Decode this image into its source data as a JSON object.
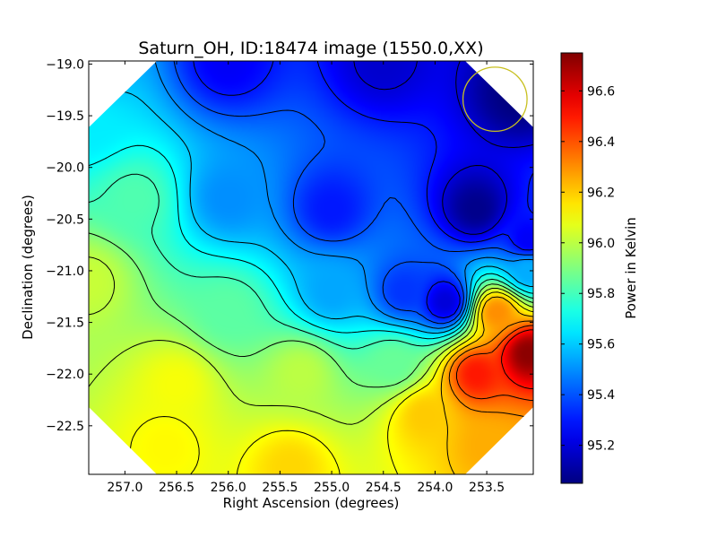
{
  "chart_data": {
    "type": "heatmap",
    "title": "Saturn_OH, ID:18474 image (1550.0,XX)",
    "xlabel": "Right Ascension (degrees)",
    "ylabel": "Declination (degrees)",
    "xlim": [
      257.35,
      253.05
    ],
    "ylim": [
      -22.97,
      -18.97
    ],
    "x_ticks": [
      257.0,
      256.5,
      256.0,
      255.5,
      255.0,
      254.5,
      254.0,
      253.5
    ],
    "x_tick_labels": [
      "257.0",
      "256.5",
      "256.0",
      "255.5",
      "255.0",
      "254.5",
      "254.0",
      "253.5"
    ],
    "y_ticks": [
      -19.0,
      -19.5,
      -20.0,
      -20.5,
      -21.0,
      -21.5,
      -22.0,
      -22.5
    ],
    "y_tick_labels": [
      "−19.0",
      "−19.5",
      "−20.0",
      "−20.5",
      "−21.0",
      "−21.5",
      "−22.0",
      "−22.5"
    ],
    "colorbar": {
      "label": "Power in Kelvin",
      "range": [
        95.05,
        96.75
      ],
      "ticks": [
        95.2,
        95.4,
        95.6,
        95.8,
        96.0,
        96.2,
        96.4,
        96.6
      ],
      "tick_labels": [
        "95.2",
        "95.4",
        "95.6",
        "95.8",
        "96.0",
        "96.2",
        "96.4",
        "96.6"
      ],
      "colormap": "jet"
    },
    "field_control_points": [
      {
        "ra": 257.35,
        "dec": -18.97,
        "value": 95.55
      },
      {
        "ra": 256.0,
        "dec": -18.97,
        "value": 95.25
      },
      {
        "ra": 254.5,
        "dec": -18.97,
        "value": 95.18
      },
      {
        "ra": 253.2,
        "dec": -19.3,
        "value": 95.05
      },
      {
        "ra": 257.35,
        "dec": -19.6,
        "value": 95.66
      },
      {
        "ra": 256.9,
        "dec": -20.3,
        "value": 95.82
      },
      {
        "ra": 256.0,
        "dec": -20.3,
        "value": 95.5
      },
      {
        "ra": 255.0,
        "dec": -20.4,
        "value": 95.3
      },
      {
        "ra": 253.6,
        "dec": -20.4,
        "value": 95.07
      },
      {
        "ra": 257.35,
        "dec": -21.1,
        "value": 96.02
      },
      {
        "ra": 256.0,
        "dec": -21.4,
        "value": 95.84
      },
      {
        "ra": 255.0,
        "dec": -21.2,
        "value": 95.54
      },
      {
        "ra": 254.3,
        "dec": -21.2,
        "value": 95.35
      },
      {
        "ra": 253.9,
        "dec": -21.3,
        "value": 95.2
      },
      {
        "ra": 253.1,
        "dec": -20.7,
        "value": 95.25
      },
      {
        "ra": 256.5,
        "dec": -22.1,
        "value": 96.1
      },
      {
        "ra": 255.3,
        "dec": -22.0,
        "value": 96.0
      },
      {
        "ra": 254.4,
        "dec": -21.9,
        "value": 95.86
      },
      {
        "ra": 253.1,
        "dec": -21.0,
        "value": 95.55
      },
      {
        "ra": 253.1,
        "dec": -21.8,
        "value": 96.73
      },
      {
        "ra": 253.6,
        "dec": -22.0,
        "value": 96.5
      },
      {
        "ra": 253.4,
        "dec": -21.4,
        "value": 96.3
      },
      {
        "ra": 254.1,
        "dec": -22.4,
        "value": 96.2
      },
      {
        "ra": 253.5,
        "dec": -22.7,
        "value": 96.25
      },
      {
        "ra": 255.4,
        "dec": -22.9,
        "value": 96.18
      },
      {
        "ra": 256.6,
        "dec": -22.7,
        "value": 96.12
      }
    ],
    "contour_levels": [
      95.2,
      95.3,
      95.4,
      95.5,
      95.6,
      95.7,
      95.8,
      95.9,
      96.0,
      96.1,
      96.2,
      96.3,
      96.4,
      96.5
    ],
    "beam_marker": {
      "ra": 253.42,
      "dec": -19.34,
      "radius_deg": 0.31,
      "color": "#c8c020"
    },
    "field_boundary_note": "octagonal footprint; corner wedges clipped"
  }
}
